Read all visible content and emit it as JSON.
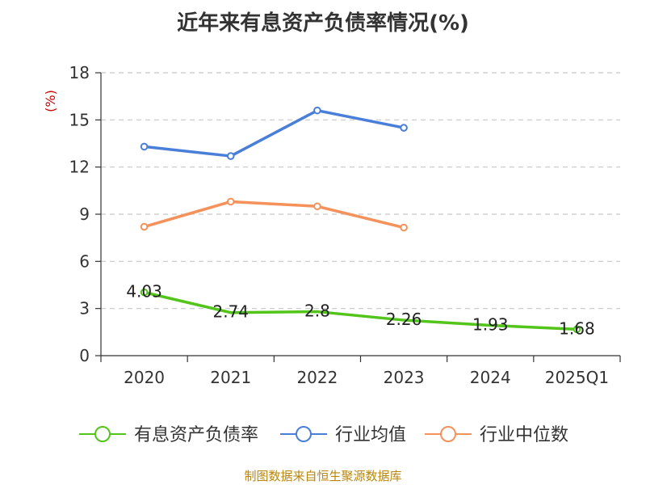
{
  "title": "近年来有息资产负债率情况(%)",
  "source": "制图数据来自恒生聚源数据库",
  "chart_data": {
    "type": "line",
    "categories": [
      "2020",
      "2021",
      "2022",
      "2023",
      "2024",
      "2025Q1"
    ],
    "ylabel": "(%)",
    "ylim": [
      0,
      18
    ],
    "yticks": [
      0,
      3,
      6,
      9,
      12,
      15,
      18
    ],
    "grid": true,
    "legend_position": "bottom",
    "series": [
      {
        "name": "有息资产负债率",
        "color": "#52c41a",
        "values": [
          4.03,
          2.74,
          2.8,
          2.26,
          1.93,
          1.68
        ],
        "labels": [
          "4.03",
          "2.74",
          "2.8",
          "2.26",
          "1.93",
          "1.68"
        ],
        "show_markers": [
          true,
          false,
          false,
          false,
          false,
          true
        ]
      },
      {
        "name": "行业均值",
        "color": "#4a7fd9",
        "values": [
          13.3,
          12.7,
          15.6,
          14.5,
          null,
          null
        ]
      },
      {
        "name": "行业中位数",
        "color": "#f5915a",
        "values": [
          8.2,
          9.8,
          9.5,
          8.15,
          null,
          null
        ]
      }
    ]
  }
}
